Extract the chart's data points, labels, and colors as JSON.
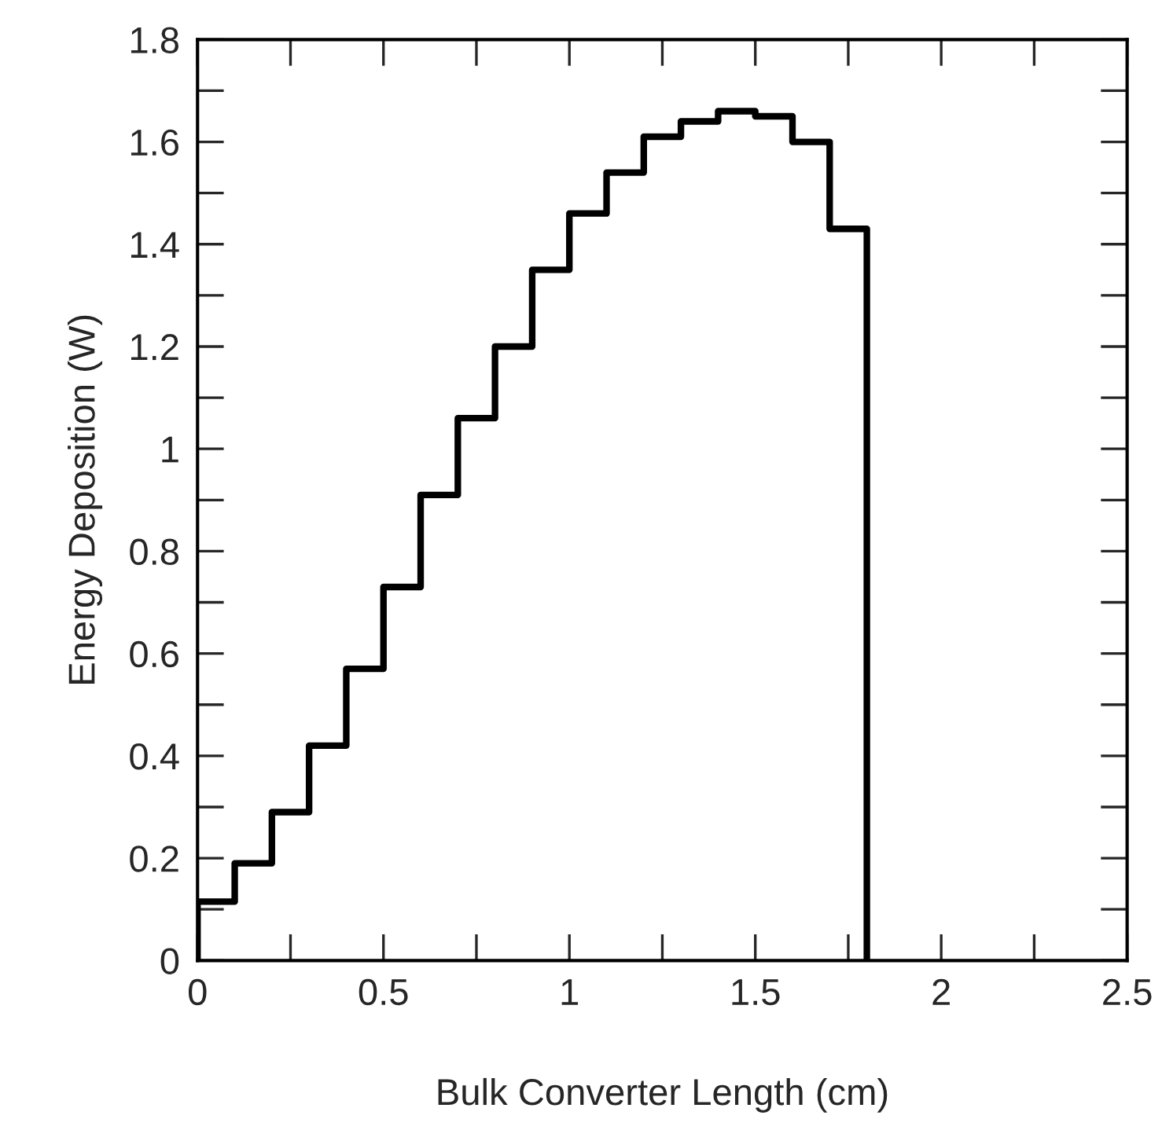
{
  "chart_data": {
    "type": "histogram",
    "xlabel": "Bulk Converter Length (cm)",
    "ylabel": "Energy Deposition (W)",
    "bins": [
      0,
      0.1,
      0.2,
      0.3,
      0.4,
      0.5,
      0.6,
      0.7,
      0.8,
      0.9,
      1.0,
      1.1,
      1.2,
      1.3,
      1.4,
      1.5,
      1.6,
      1.7,
      1.8
    ],
    "values": [
      0.115,
      0.19,
      0.29,
      0.42,
      0.57,
      0.73,
      0.91,
      1.06,
      1.2,
      1.35,
      1.46,
      1.54,
      1.61,
      1.64,
      1.66,
      1.65,
      1.6,
      1.43
    ],
    "color": "#000000",
    "xlim": [
      0,
      2.5
    ],
    "xticks": [
      0,
      0.5,
      1,
      1.5,
      2,
      2.5
    ],
    "ylim": [
      0,
      1.8
    ],
    "yticks": [
      0,
      0.2,
      0.4,
      0.6,
      0.8,
      1,
      1.2,
      1.4,
      1.6,
      1.8
    ],
    "grid": false,
    "legend": false
  }
}
